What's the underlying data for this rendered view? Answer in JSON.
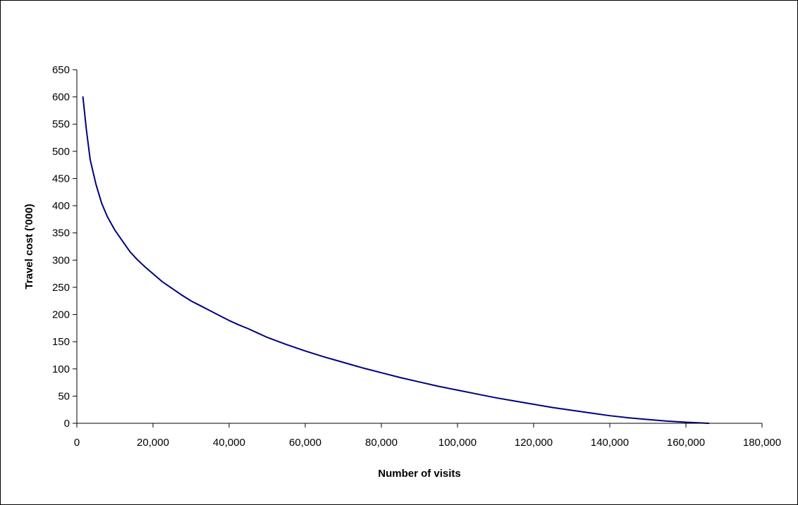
{
  "chart_data": {
    "type": "line",
    "title": "",
    "xlabel": "Number of visits",
    "ylabel": "Travel cost ('000)",
    "xlim": [
      0,
      180000
    ],
    "ylim": [
      0,
      650
    ],
    "x_ticks": [
      0,
      20000,
      40000,
      60000,
      80000,
      100000,
      120000,
      140000,
      160000,
      180000
    ],
    "x_tick_labels": [
      "0",
      "20,000",
      "40,000",
      "60,000",
      "80,000",
      "100,000",
      "120,000",
      "140,000",
      "160,000",
      "180,000"
    ],
    "y_ticks": [
      0,
      50,
      100,
      150,
      200,
      250,
      300,
      350,
      400,
      450,
      500,
      550,
      600,
      650
    ],
    "y_tick_labels": [
      "0",
      "50",
      "100",
      "150",
      "200",
      "250",
      "300",
      "350",
      "400",
      "450",
      "500",
      "550",
      "600",
      "650"
    ],
    "grid": false,
    "legend": "none",
    "series": [
      {
        "color": "#000080",
        "points": [
          [
            1600,
            600
          ],
          [
            2500,
            540
          ],
          [
            3500,
            485
          ],
          [
            5000,
            440
          ],
          [
            6500,
            405
          ],
          [
            8000,
            380
          ],
          [
            10000,
            355
          ],
          [
            12000,
            335
          ],
          [
            14000,
            315
          ],
          [
            16000,
            300
          ],
          [
            18000,
            287
          ],
          [
            20000,
            275
          ],
          [
            22500,
            260
          ],
          [
            25000,
            248
          ],
          [
            27500,
            236
          ],
          [
            30000,
            225
          ],
          [
            32500,
            216
          ],
          [
            35000,
            207
          ],
          [
            37500,
            198
          ],
          [
            40000,
            189
          ],
          [
            42500,
            181
          ],
          [
            45000,
            174
          ],
          [
            47500,
            166
          ],
          [
            50000,
            158
          ],
          [
            55000,
            145
          ],
          [
            60000,
            133
          ],
          [
            65000,
            122
          ],
          [
            70000,
            112
          ],
          [
            75000,
            102
          ],
          [
            80000,
            93
          ],
          [
            85000,
            84
          ],
          [
            90000,
            76
          ],
          [
            95000,
            68
          ],
          [
            100000,
            61
          ],
          [
            105000,
            54
          ],
          [
            110000,
            47
          ],
          [
            115000,
            41
          ],
          [
            120000,
            35
          ],
          [
            125000,
            29
          ],
          [
            130000,
            24
          ],
          [
            135000,
            19
          ],
          [
            140000,
            14
          ],
          [
            145000,
            10
          ],
          [
            150000,
            7
          ],
          [
            155000,
            4
          ],
          [
            160000,
            2
          ],
          [
            163000,
            1
          ],
          [
            166000,
            0
          ]
        ]
      }
    ]
  }
}
